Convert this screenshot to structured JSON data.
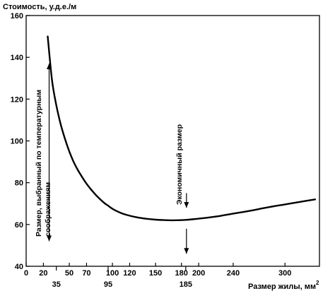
{
  "chart_data": {
    "type": "line",
    "ylabel": "Стоимость, у.д.е./м",
    "xlabel": "Размер жилы, мм",
    "xlabel_sup": "2",
    "xlim": [
      0,
      340
    ],
    "ylim": [
      40,
      160
    ],
    "y_ticks": [
      40,
      60,
      80,
      100,
      120,
      140,
      160
    ],
    "x_ticks_upper": [
      0,
      20,
      50,
      70,
      100,
      120,
      150,
      180,
      200,
      240,
      300
    ],
    "x_ticks_lower": [
      35,
      95,
      185
    ],
    "grid": false,
    "series": [
      {
        "x": [
          25,
          30,
          35,
          40,
          45,
          50,
          55,
          60,
          70,
          80,
          90,
          95,
          100,
          110,
          120,
          130,
          140,
          150,
          160,
          170,
          185,
          200,
          220,
          240,
          260,
          280,
          300,
          320,
          335
        ],
        "y": [
          150,
          129,
          117,
          108,
          101,
          95,
          90,
          86,
          79.5,
          74.5,
          70.5,
          69,
          67.5,
          65.5,
          64.2,
          63.3,
          62.7,
          62.3,
          62.1,
          62.0,
          62.2,
          62.8,
          63.8,
          65.2,
          66.6,
          68.2,
          69.6,
          71.0,
          72.0
        ]
      }
    ],
    "annotations": [
      {
        "text_lines": [
          "Размер, выбранный по температурным",
          "соображениям"
        ],
        "x": 25,
        "arrow_y": [
          52,
          137
        ]
      },
      {
        "text_lines": [
          "Экономичный размер"
        ],
        "x": 185,
        "arrow_y": [
          46,
          58,
          68,
          75
        ]
      }
    ]
  }
}
